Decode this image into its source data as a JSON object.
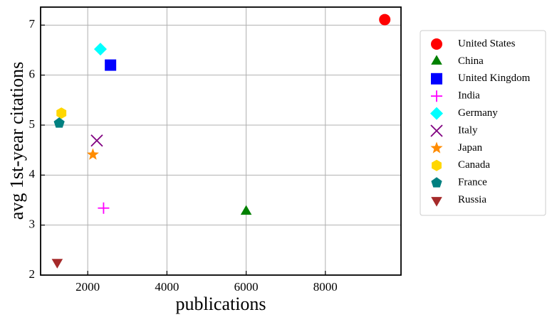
{
  "chart_data": {
    "type": "scatter",
    "x_label": "publications",
    "y_label": "avg 1st-year citations",
    "xlim": [
      810,
      9910
    ],
    "ylim": [
      2,
      7.36
    ],
    "xticks": [
      2000,
      4000,
      6000,
      8000
    ],
    "yticks": [
      2,
      3,
      4,
      5,
      6,
      7
    ],
    "grid": true,
    "legend": "outside right",
    "series": [
      {
        "name": "United States",
        "color": "#ff0000",
        "marker": "circle",
        "x": [
          9500
        ],
        "values": [
          7.11
        ]
      },
      {
        "name": "China",
        "color": "#008000",
        "marker": "triangle-up",
        "x": [
          6000
        ],
        "values": [
          3.27
        ]
      },
      {
        "name": "United Kingdom",
        "color": "#0000ff",
        "marker": "square",
        "x": [
          2575
        ],
        "values": [
          6.2
        ]
      },
      {
        "name": "India",
        "color": "#ff00ff",
        "marker": "plus",
        "x": [
          2400
        ],
        "values": [
          3.34
        ]
      },
      {
        "name": "Germany",
        "color": "#00ffff",
        "marker": "diamond",
        "x": [
          2320
        ],
        "values": [
          6.52
        ]
      },
      {
        "name": "Italy",
        "color": "#800080",
        "marker": "x",
        "x": [
          2230
        ],
        "values": [
          4.69
        ]
      },
      {
        "name": "Japan",
        "color": "#ff8c00",
        "marker": "star",
        "x": [
          2130
        ],
        "values": [
          4.41
        ]
      },
      {
        "name": "Canada",
        "color": "#ffd700",
        "marker": "hexagon",
        "x": [
          1335
        ],
        "values": [
          5.24
        ]
      },
      {
        "name": "France",
        "color": "#008080",
        "marker": "pentagon",
        "x": [
          1280
        ],
        "values": [
          5.04
        ]
      },
      {
        "name": "Russia",
        "color": "#a52a2a",
        "marker": "triangle-down",
        "x": [
          1230
        ],
        "values": [
          2.26
        ]
      }
    ]
  }
}
